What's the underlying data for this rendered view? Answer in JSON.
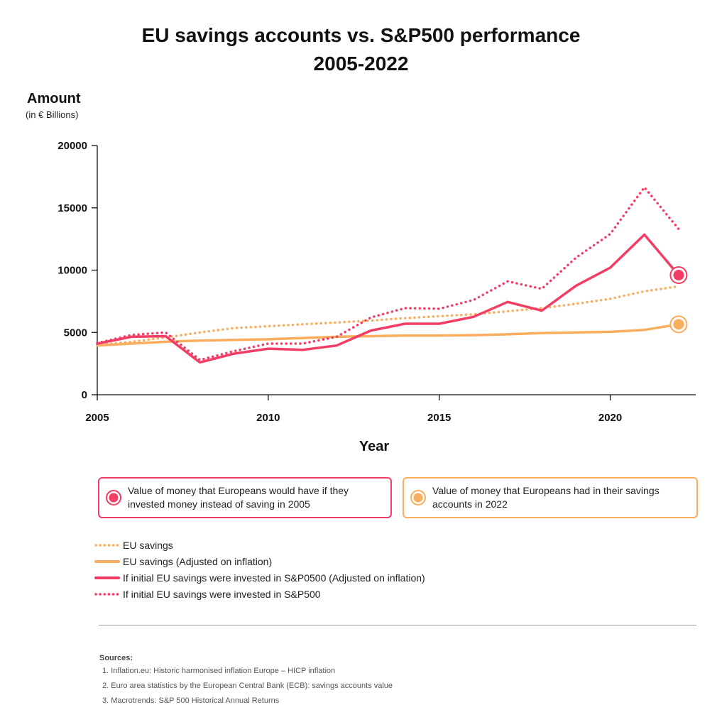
{
  "chart_data": {
    "type": "line",
    "title_lines": [
      "EU savings accounts vs. S&P500 performance",
      "2005-2022"
    ],
    "ylabel": "Amount",
    "yunit": "(in € Billions)",
    "xlabel": "Year",
    "xlim": [
      2005,
      2022.5
    ],
    "ylim": [
      0,
      20000
    ],
    "x_ticks": [
      "2005",
      "2010",
      "2015",
      "2020"
    ],
    "y_ticks": [
      "0",
      "5000",
      "10000",
      "15000",
      "20000"
    ],
    "x": [
      2005,
      2006,
      2007,
      2008,
      2009,
      2010,
      2011,
      2012,
      2013,
      2014,
      2015,
      2016,
      2017,
      2018,
      2019,
      2020,
      2021,
      2022
    ],
    "series": [
      {
        "name": "EU savings",
        "color": "#f9ad5e",
        "style": "dotted",
        "values": [
          4000,
          4250,
          4600,
          5000,
          5350,
          5500,
          5650,
          5800,
          5950,
          6150,
          6300,
          6450,
          6700,
          6950,
          7300,
          7700,
          8300,
          8700
        ]
      },
      {
        "name": "EU savings (Adjusted on inflation)",
        "color": "#f9ad5e",
        "style": "solid",
        "values": [
          3950,
          4100,
          4250,
          4350,
          4400,
          4450,
          4550,
          4650,
          4700,
          4750,
          4750,
          4780,
          4850,
          4950,
          5000,
          5050,
          5200,
          5650
        ]
      },
      {
        "name": "If initial EU savings were invested in S&P0500 (Adjusted on inflation)",
        "color": "#f23d65",
        "style": "solid",
        "values": [
          4100,
          4650,
          4700,
          2600,
          3300,
          3700,
          3600,
          3950,
          5150,
          5700,
          5700,
          6250,
          7450,
          6750,
          8750,
          10200,
          12850,
          9600
        ]
      },
      {
        "name": "If initial EU savings were invested in S&P500",
        "color": "#f23d65",
        "style": "dotted",
        "values": [
          4150,
          4800,
          5000,
          2800,
          3500,
          4100,
          4100,
          4650,
          6200,
          6950,
          6900,
          7600,
          9100,
          8500,
          11000,
          12900,
          16650,
          13300
        ]
      }
    ],
    "legend": "below",
    "grid": false,
    "callouts": [
      {
        "text": "Value of money that Europeans would have if they invested money instead of saving in 2005",
        "color": "#f23d65",
        "x": 2022,
        "y": 9600
      },
      {
        "text": "Value of money that Europeans had in their savings accounts in 2022",
        "color": "#f9ad5e",
        "x": 2022,
        "y": 5650
      }
    ]
  },
  "sources": {
    "heading": "Sources:",
    "items": [
      "1. Inflation.eu: Historic harmonised inflation Europe – HICP inflation",
      "2. Euro area statistics by the European Central Bank (ECB): savings accounts value",
      "3. Macrotrends: S&P 500 Historical Annual Returns"
    ]
  }
}
